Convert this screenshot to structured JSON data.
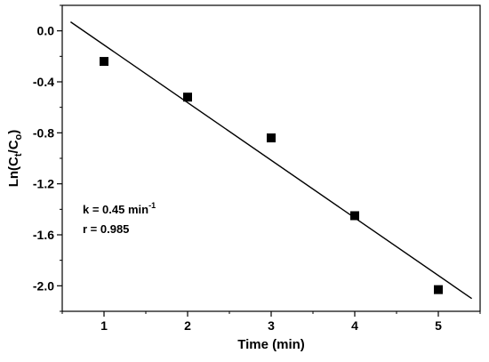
{
  "chart_data": {
    "type": "scatter",
    "title": "",
    "xlabel": "Time (min)",
    "ylabel": {
      "base": "Ln(C",
      "sub1": "t",
      "mid": "/C",
      "sub2": "o",
      "end": ")"
    },
    "xlim": [
      0.5,
      5.5
    ],
    "ylim": [
      -2.2,
      0.2
    ],
    "x_ticks": [
      1,
      2,
      3,
      4,
      5
    ],
    "y_ticks": [
      0.0,
      -0.4,
      -0.8,
      -1.2,
      -1.6,
      -2.0
    ],
    "y_tick_labels": [
      "0.0",
      "-0.4",
      "-0.8",
      "-1.2",
      "-1.6",
      "-2.0"
    ],
    "series": [
      {
        "x": [
          1,
          2,
          3,
          4,
          5
        ],
        "y": [
          -0.24,
          -0.52,
          -0.84,
          -1.45,
          -2.03
        ],
        "marker": "square",
        "color": "#000000"
      }
    ],
    "fit_line": {
      "x": [
        0.6,
        5.4
      ],
      "y": [
        0.07,
        -2.1
      ],
      "color": "#000000"
    },
    "annotations": {
      "k_prefix": "k = 0.45 min",
      "k_sup": "-1",
      "r": "r = 0.985"
    },
    "grid": false,
    "legend": "none"
  }
}
